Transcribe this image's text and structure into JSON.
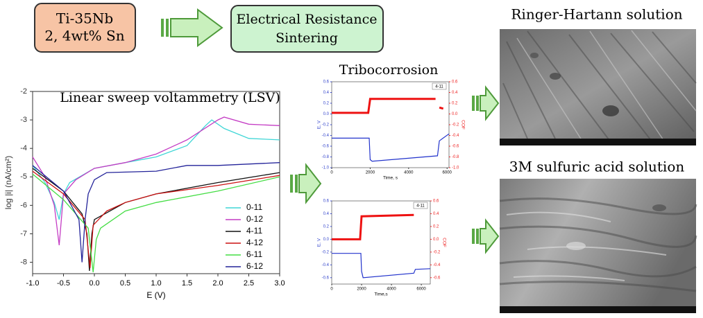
{
  "boxes": [
    {
      "lines": [
        "Ti-35Nb",
        "2, 4wt% Sn"
      ]
    },
    {
      "lines": [
        "Electrical Resistance",
        "Sintering"
      ]
    }
  ],
  "tribocorrosion": {
    "title": "Tribocorrosion"
  },
  "images": [
    {
      "caption": "Ringer-Hartann solution"
    },
    {
      "caption": "3M sulfuric acid solution"
    }
  ],
  "chart_data": [
    {
      "type": "line",
      "title": "Linear sweep voltammetry (LSV)",
      "xlabel": "E (V)",
      "ylabel": "log |i| (nA/cm²)",
      "xlim": [
        -1,
        3
      ],
      "ylim": [
        -8.4,
        -2
      ],
      "xticks": [
        {
          "value": -1,
          "label": "-1.0"
        },
        {
          "value": -0.5,
          "label": "-0.5"
        },
        {
          "value": 0,
          "label": "0.0"
        },
        0.5,
        {
          "value": 1,
          "label": "1.0"
        },
        1.5,
        {
          "value": 2,
          "label": "2.0"
        },
        2.5,
        {
          "value": 3,
          "label": "3.0"
        }
      ],
      "yticks": [
        -2,
        -3,
        -4,
        -5,
        -6,
        -7,
        -8
      ],
      "legend": "lower right",
      "series": [
        {
          "name": "0-11",
          "color": "#3fd6d6",
          "x": [
            -1,
            -0.8,
            -0.65,
            -0.57,
            -0.5,
            -0.4,
            0,
            0.5,
            1,
            1.5,
            1.8,
            1.9,
            2.1,
            2.5,
            3
          ],
          "values": [
            -4.6,
            -5.2,
            -5.9,
            -6.5,
            -5.6,
            -5.2,
            -4.7,
            -4.5,
            -4.3,
            -3.9,
            -3.2,
            -3.0,
            -3.3,
            -3.65,
            -3.7
          ]
        },
        {
          "name": "0-12",
          "color": "#c43cc4",
          "x": [
            -1,
            -0.8,
            -0.65,
            -0.57,
            -0.5,
            -0.3,
            0,
            0.5,
            1,
            1.5,
            2,
            2.1,
            2.5,
            3
          ],
          "values": [
            -4.3,
            -5.0,
            -6.0,
            -7.4,
            -5.6,
            -5.1,
            -4.7,
            -4.5,
            -4.2,
            -3.7,
            -3.0,
            -2.9,
            -3.15,
            -3.2
          ]
        },
        {
          "name": "4-11",
          "color": "#111111",
          "x": [
            -1,
            -0.5,
            -0.2,
            -0.12,
            -0.08,
            -0.04,
            0,
            0.5,
            1,
            2,
            3
          ],
          "values": [
            -4.7,
            -5.5,
            -6.3,
            -7.0,
            -8.3,
            -7.0,
            -6.5,
            -5.9,
            -5.6,
            -5.2,
            -4.85
          ]
        },
        {
          "name": "4-12",
          "color": "#cc1111",
          "x": [
            -1,
            -0.5,
            -0.15,
            -0.07,
            -0.02,
            0.2,
            0.5,
            1,
            2,
            3
          ],
          "values": [
            -4.8,
            -5.6,
            -6.5,
            -8.2,
            -6.7,
            -6.2,
            -5.9,
            -5.6,
            -5.3,
            -4.95
          ]
        },
        {
          "name": "6-11",
          "color": "#44dd44",
          "x": [
            -1,
            -0.5,
            -0.1,
            -0.02,
            0.03,
            0.1,
            0.5,
            1,
            2,
            3
          ],
          "values": [
            -4.9,
            -5.8,
            -6.8,
            -8.35,
            -7.2,
            -6.8,
            -6.2,
            -5.9,
            -5.5,
            -5.0
          ]
        },
        {
          "name": "6-12",
          "color": "#222299",
          "x": [
            -1,
            -0.5,
            -0.25,
            -0.2,
            -0.15,
            -0.1,
            0,
            0.2,
            1,
            1.5,
            2,
            3
          ],
          "values": [
            -4.6,
            -5.5,
            -6.5,
            -8.0,
            -6.5,
            -5.6,
            -5.1,
            -4.85,
            -4.8,
            -4.6,
            -4.6,
            -4.5
          ]
        }
      ]
    },
    {
      "type": "line",
      "annotation": "4-11",
      "xlabel": "Time, s",
      "ylabel": "E, V",
      "y2label": "COF",
      "ycolor": "#3344cc",
      "y2color": "#ee2222",
      "xlim": [
        0,
        6100
      ],
      "ylim": [
        -1,
        0.6
      ],
      "y2lim": [
        -1,
        0.6
      ],
      "xticks": [
        0,
        2000,
        4000,
        6000
      ],
      "yticks": [
        0.6,
        0.4,
        0.2,
        {
          "value": 0,
          "label": "0.0"
        },
        -0.2,
        -0.4,
        -0.6,
        -0.8,
        {
          "value": -1,
          "label": "-1.0"
        }
      ],
      "y2ticks": [
        0.6,
        0.4,
        0.2,
        {
          "value": 0,
          "label": "0.0"
        },
        -0.2,
        -0.4,
        -0.6,
        -0.8,
        {
          "value": -1,
          "label": "-1.0"
        }
      ],
      "series": [
        {
          "name": "E",
          "color": "#2233cc",
          "x": [
            0,
            1950,
            2000,
            2100,
            5500,
            5600,
            6100
          ],
          "values": [
            -0.45,
            -0.45,
            -0.85,
            -0.88,
            -0.78,
            -0.5,
            -0.37
          ]
        },
        {
          "name": "COF",
          "color": "#ee1111",
          "axis": "y2",
          "x": [
            0,
            1900,
            2000,
            5400,
            5500,
            5600,
            5800
          ],
          "values": [
            0.02,
            0.02,
            0.28,
            0.28,
            null,
            0.12,
            0.1
          ]
        }
      ]
    },
    {
      "type": "line",
      "annotation": "4-11",
      "xlabel": "Time,s",
      "ylabel": "E, V",
      "y2label": "COF",
      "ycolor": "#3344cc",
      "y2color": "#ee2222",
      "xlim": [
        0,
        6600
      ],
      "ylim": [
        -0.7,
        0.6
      ],
      "y2lim": [
        -0.7,
        0.6
      ],
      "xticks": [
        0,
        2000,
        4000,
        6000
      ],
      "yticks": [
        0.6,
        0.4,
        0.2,
        {
          "value": 0,
          "label": "0.0"
        },
        -0.2,
        -0.4,
        -0.6
      ],
      "y2ticks": [
        0.6,
        0.4,
        0.2,
        {
          "value": 0,
          "label": "0.0"
        },
        -0.2,
        -0.4,
        -0.6
      ],
      "series": [
        {
          "name": "E",
          "color": "#2233cc",
          "x": [
            0,
            1950,
            2000,
            2100,
            5500,
            5600,
            6600
          ],
          "values": [
            -0.22,
            -0.22,
            -0.5,
            -0.6,
            -0.53,
            -0.47,
            -0.46
          ]
        },
        {
          "name": "COF",
          "color": "#ee1111",
          "axis": "y2",
          "x": [
            0,
            1900,
            2000,
            5500
          ],
          "values": [
            0.0,
            0.0,
            0.36,
            0.38
          ]
        }
      ]
    }
  ]
}
